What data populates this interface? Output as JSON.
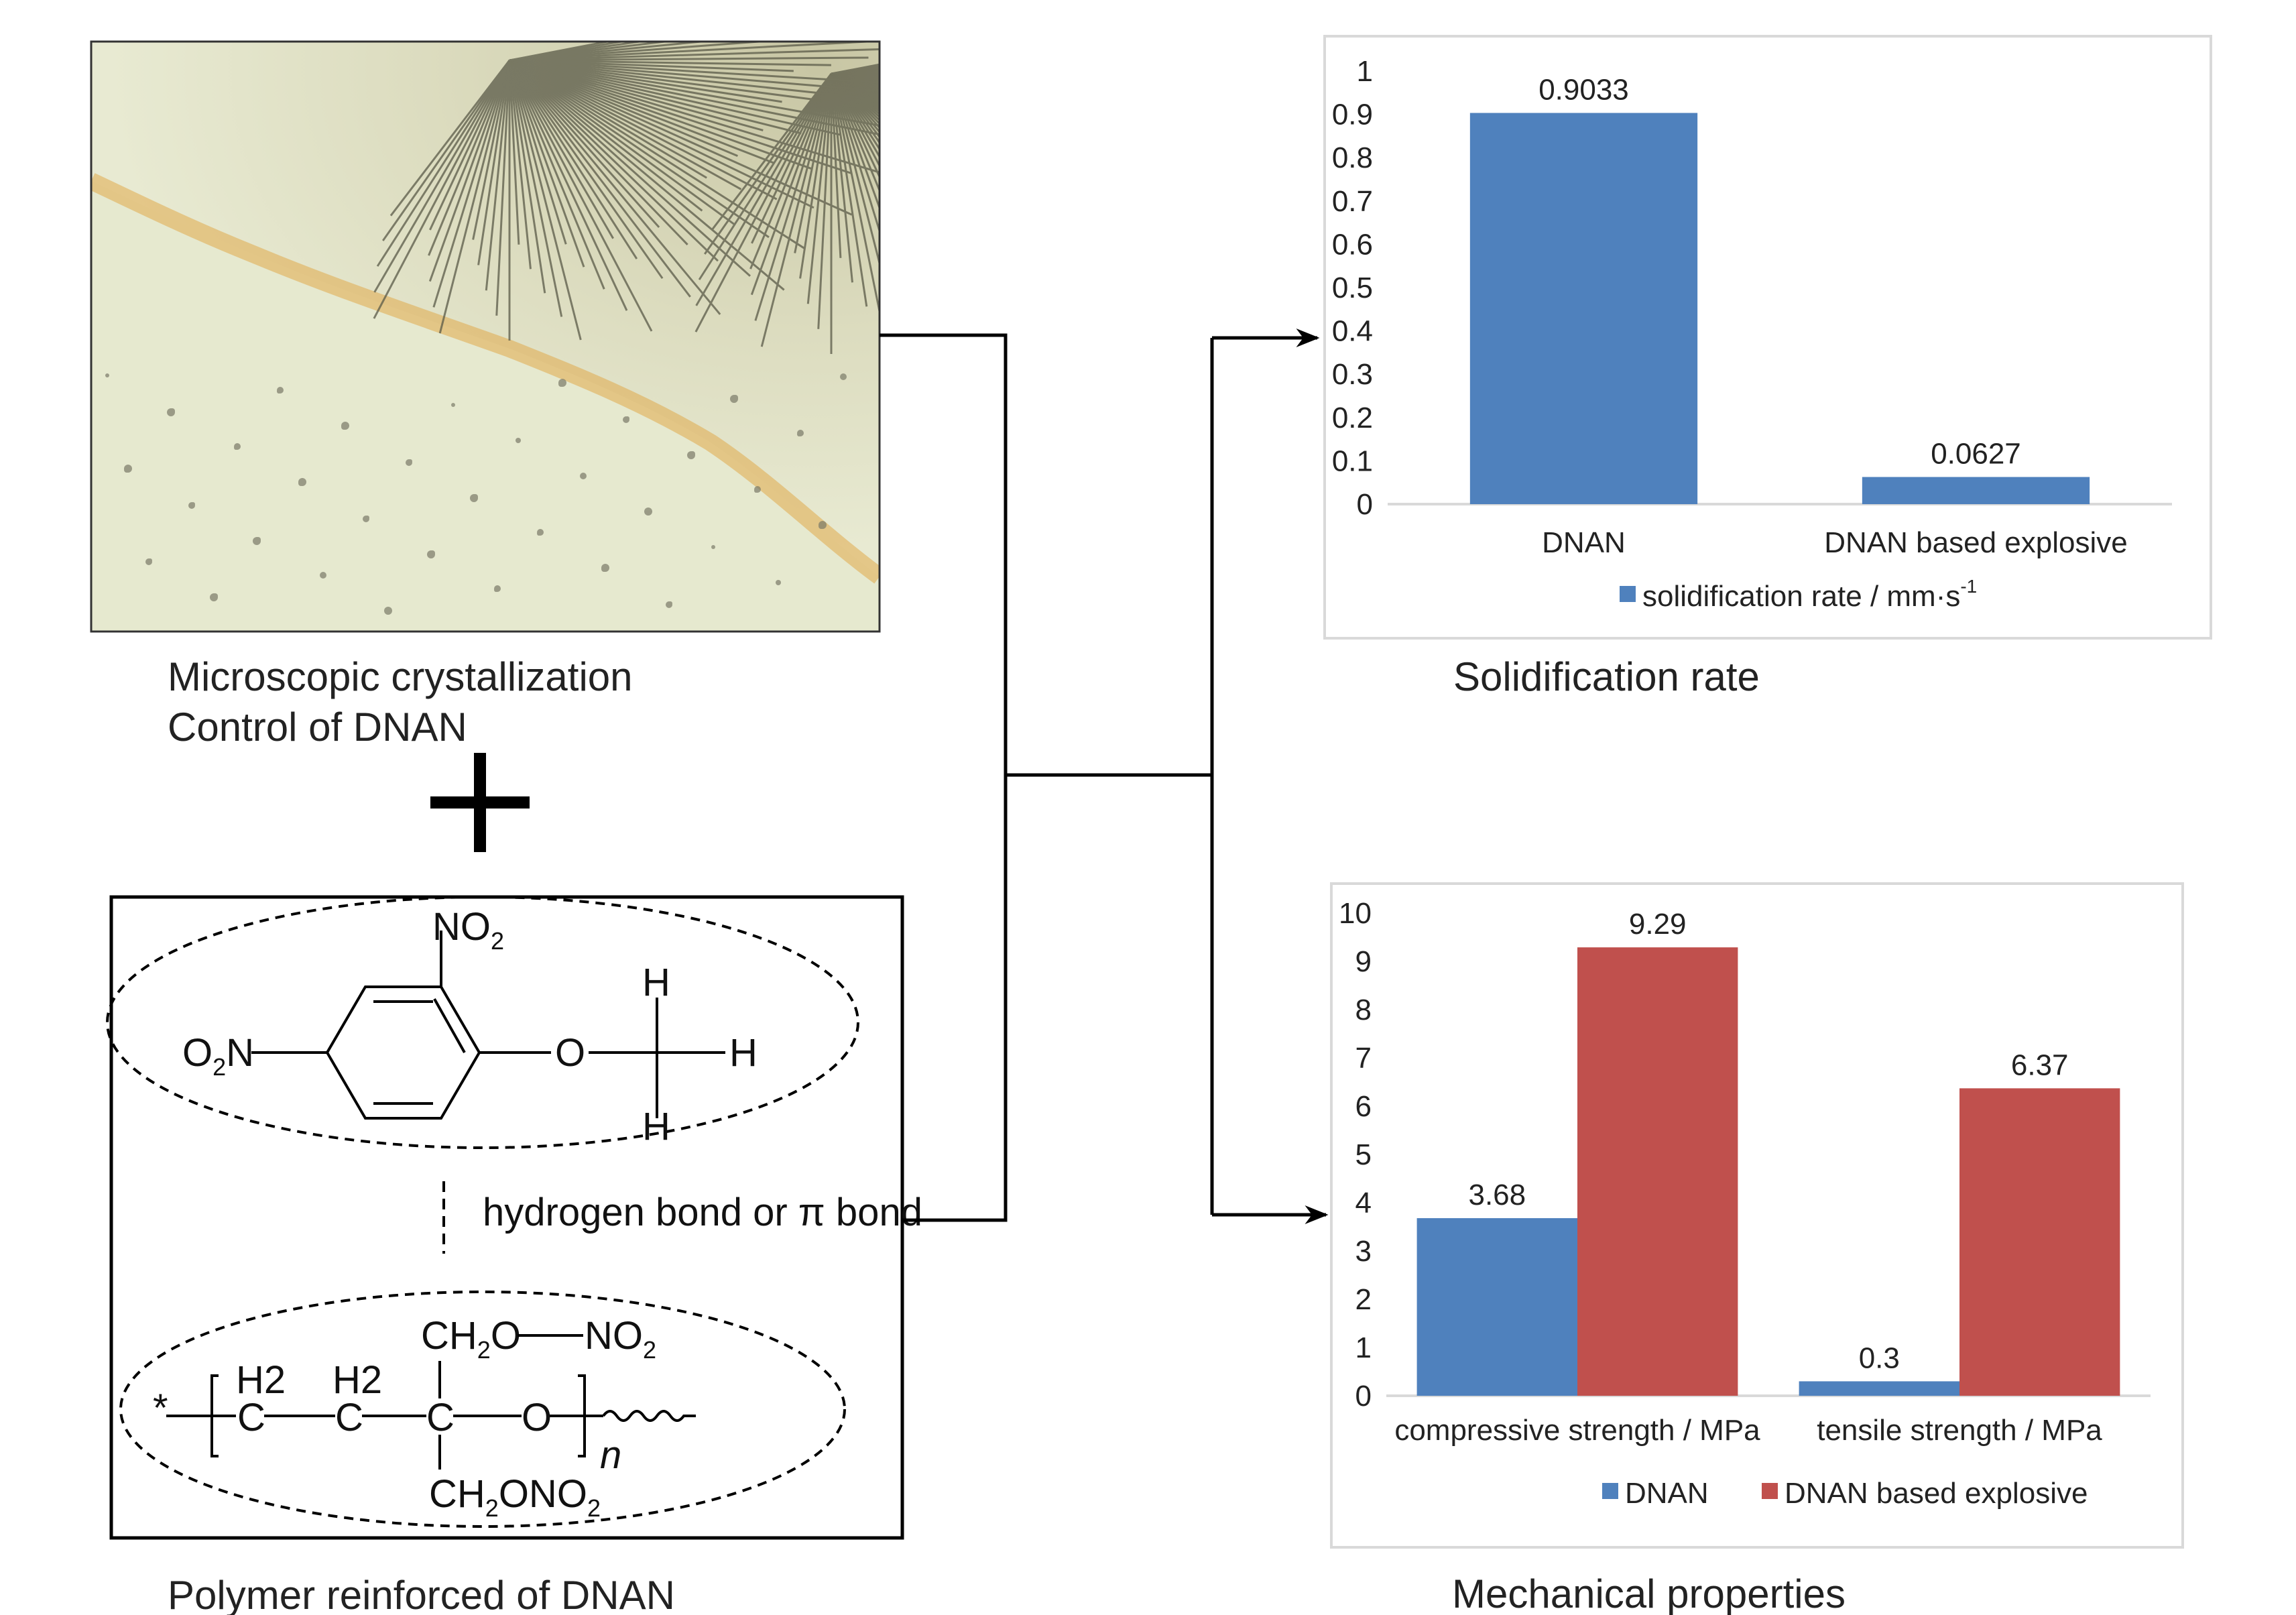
{
  "captions": {
    "micro_line1": "Microscopic crystallization",
    "micro_line2": "Control of DNAN",
    "polymer": "Polymer reinforced of DNAN",
    "solid_rate": "Solidification rate",
    "mech": "Mechanical properties"
  },
  "chem": {
    "no2_top": "NO",
    "no2_top_sub": "2",
    "o2n_left_o": "O",
    "o2n_left_sub": "2",
    "o2n_left_n": "N",
    "oxygen": "O",
    "h_top": "H",
    "h_right": "H",
    "h_bottom": "H",
    "bond_text": "hydrogen bond or π bond",
    "star": "*",
    "h2_a": "H2",
    "h2_b": "H2",
    "c1": "C",
    "c2": "C",
    "c3": "C",
    "o_chain": "O",
    "n_sub": "n",
    "ch2o": "CH",
    "ch2o_sub": "2",
    "ch2o_o": "O",
    "no2_right": "NO",
    "no2_right_sub": "2",
    "ch2ono2": "CH",
    "ch2ono2_sub": "2",
    "ch2ono2_rest": "ONO",
    "ch2ono2_sub2": "2"
  },
  "chart_data": [
    {
      "type": "bar",
      "categories": [
        "DNAN",
        "DNAN based explosive"
      ],
      "series": [
        {
          "name": "solidification rate / mm·s",
          "name_sup": "-1",
          "values": [
            0.9033,
            0.0627
          ],
          "labels": [
            "0.9033",
            "0.0627"
          ]
        }
      ],
      "ylim": [
        0,
        1
      ],
      "yticks": [
        "0",
        "0.1",
        "0.2",
        "0.3",
        "0.4",
        "0.5",
        "0.6",
        "0.7",
        "0.8",
        "0.9",
        "1"
      ],
      "grid": false,
      "legend": "bottom",
      "colors": [
        "#4f81bd"
      ]
    },
    {
      "type": "bar",
      "categories": [
        "compressive strength / MPa",
        "tensile strength / MPa"
      ],
      "series": [
        {
          "name": "DNAN",
          "values": [
            3.68,
            0.3
          ],
          "labels": [
            "3.68",
            "0.3"
          ]
        },
        {
          "name": "DNAN based explosive",
          "values": [
            9.29,
            6.37
          ],
          "labels": [
            "9.29",
            "6.37"
          ]
        }
      ],
      "ylim": [
        0,
        10
      ],
      "yticks": [
        "0",
        "1",
        "2",
        "3",
        "4",
        "5",
        "6",
        "7",
        "8",
        "9",
        "10"
      ],
      "grid": false,
      "legend": "bottom",
      "colors": [
        "#4f81bd",
        "#c0504d"
      ]
    }
  ]
}
